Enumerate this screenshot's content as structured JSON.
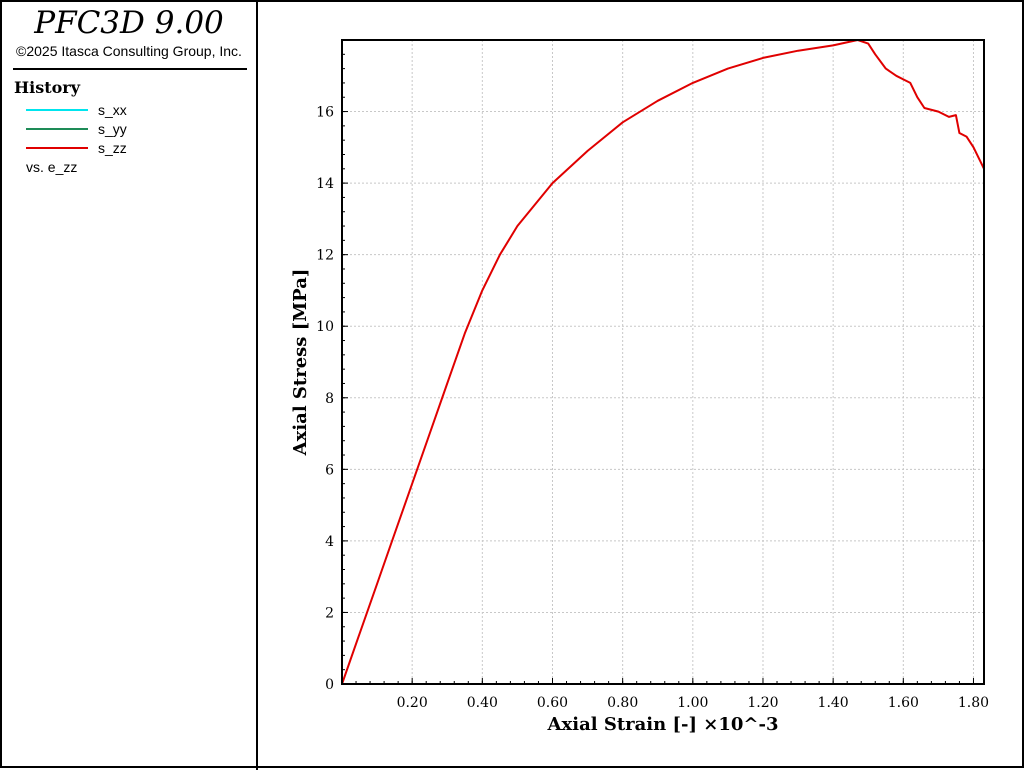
{
  "app": {
    "title": "PFC3D 9.00",
    "copyright": "©2025 Itasca Consulting Group, Inc."
  },
  "legend": {
    "heading": "History",
    "items": [
      {
        "label": "s_xx",
        "color": "#00e5ee"
      },
      {
        "label": "s_yy",
        "color": "#1e8b57"
      },
      {
        "label": "s_zz",
        "color": "#e00000"
      }
    ],
    "vs_label": "vs. e_zz"
  },
  "chart_data": {
    "type": "line",
    "xlabel": "Axial Strain [-] ×10^-3",
    "ylabel": "Axial Stress [MPa]",
    "xlim": [
      0,
      1.83
    ],
    "ylim": [
      0,
      18
    ],
    "x_ticks": [
      0.2,
      0.4,
      0.6,
      0.8,
      1.0,
      1.2,
      1.4,
      1.6,
      1.8
    ],
    "x_tick_labels": [
      "0.20",
      "0.40",
      "0.60",
      "0.80",
      "1.00",
      "1.20",
      "1.40",
      "1.60",
      "1.80"
    ],
    "y_ticks": [
      0,
      2,
      4,
      6,
      8,
      10,
      12,
      14,
      16
    ],
    "y_tick_labels": [
      "0",
      "2",
      "4",
      "6",
      "8",
      "10",
      "12",
      "14",
      "16"
    ],
    "grid": true,
    "series": [
      {
        "name": "s_xx",
        "color": "#00e5ee",
        "points": [
          [
            0.0,
            0.0
          ],
          [
            1.83,
            0.0
          ]
        ]
      },
      {
        "name": "s_yy",
        "color": "#1e8b57",
        "points": [
          [
            0.0,
            0.0
          ],
          [
            1.83,
            0.0
          ]
        ]
      },
      {
        "name": "s_zz",
        "color": "#e00000",
        "points": [
          [
            0.0,
            0.0
          ],
          [
            0.05,
            1.4
          ],
          [
            0.1,
            2.8
          ],
          [
            0.15,
            4.2
          ],
          [
            0.2,
            5.6
          ],
          [
            0.25,
            7.0
          ],
          [
            0.3,
            8.4
          ],
          [
            0.35,
            9.8
          ],
          [
            0.4,
            11.0
          ],
          [
            0.45,
            12.0
          ],
          [
            0.5,
            12.8
          ],
          [
            0.6,
            14.0
          ],
          [
            0.7,
            14.9
          ],
          [
            0.8,
            15.7
          ],
          [
            0.9,
            16.3
          ],
          [
            1.0,
            16.8
          ],
          [
            1.1,
            17.2
          ],
          [
            1.2,
            17.5
          ],
          [
            1.3,
            17.7
          ],
          [
            1.4,
            17.85
          ],
          [
            1.47,
            18.0
          ],
          [
            1.5,
            17.9
          ],
          [
            1.52,
            17.6
          ],
          [
            1.55,
            17.2
          ],
          [
            1.58,
            17.0
          ],
          [
            1.6,
            16.9
          ],
          [
            1.62,
            16.8
          ],
          [
            1.64,
            16.4
          ],
          [
            1.66,
            16.1
          ],
          [
            1.7,
            16.0
          ],
          [
            1.73,
            15.85
          ],
          [
            1.75,
            15.9
          ],
          [
            1.76,
            15.4
          ],
          [
            1.78,
            15.3
          ],
          [
            1.8,
            15.0
          ],
          [
            1.83,
            14.4
          ]
        ]
      }
    ]
  }
}
